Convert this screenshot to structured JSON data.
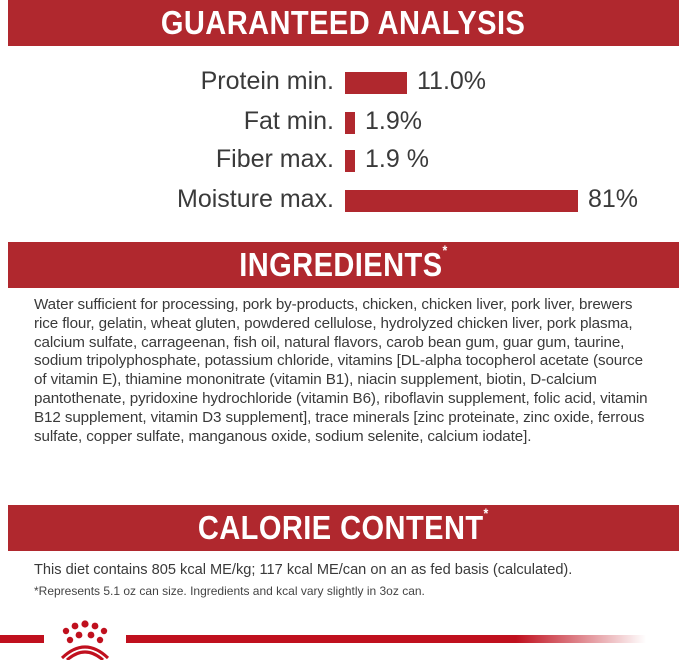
{
  "brand_color": "#b0282e",
  "analysis": {
    "title": "GUARANTEED ANALYSIS",
    "rows": [
      {
        "label": "Protein min.",
        "value": "11.0%",
        "percent": 11.0
      },
      {
        "label": "Fat min.",
        "value": "1.9%",
        "percent": 1.9
      },
      {
        "label": "Fiber max.",
        "value": "1.9 %",
        "percent": 1.9
      },
      {
        "label": "Moisture max.",
        "value": "81%",
        "percent": 81
      }
    ]
  },
  "ingredients": {
    "title": "INGREDIENTS",
    "asterisk": "*",
    "text": "Water sufficient for processing, pork by-products, chicken, chicken liver, pork liver, brewers rice flour, gelatin, wheat gluten, powdered cellulose, hydrolyzed chicken liver, pork plasma, calcium sulfate, carrageenan, fish oil, natural flavors, carob bean gum, guar gum, taurine, sodium tripolyphosphate, potassium chloride, vitamins [DL-alpha tocopherol acetate (source of vitamin E), thiamine mononitrate (vitamin B1), niacin supplement, biotin, D-calcium pantothenate, pyridoxine hydrochloride (vitamin B6), riboflavin supplement, folic acid, vitamin B12 supplement, vitamin D3 supplement], trace minerals [zinc proteinate, zinc oxide, ferrous sulfate, copper sulfate, manganous oxide, sodium selenite, calcium iodate]."
  },
  "calorie": {
    "title": "CALORIE CONTENT",
    "asterisk": "*",
    "text": "This diet contains 805 kcal ME/kg; 117 kcal ME/can on an as fed basis (calculated).",
    "footnote": "*Represents 5.1 oz can size. Ingredients and kcal vary slightly in 3oz can."
  },
  "footer": {
    "logo_icon": "royal-canin-crown-icon"
  }
}
